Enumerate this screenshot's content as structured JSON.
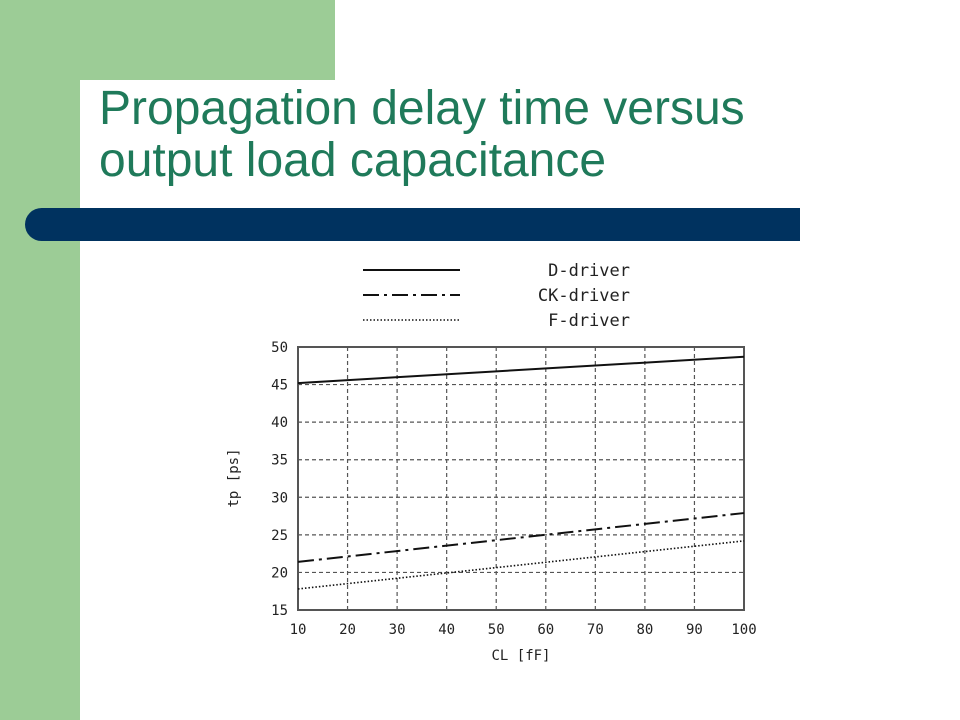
{
  "slide": {
    "title_line1": "Propagation delay time versus",
    "title_line2": "output load capacitance"
  },
  "colors": {
    "green": "#9ccc96",
    "navy": "#00325f",
    "title": "#1f7a5a"
  },
  "chart_data": {
    "type": "line",
    "title": "",
    "xlabel": "CL [fF]",
    "ylabel": "tp [ps]",
    "xlim": [
      10,
      100
    ],
    "ylim": [
      15,
      50
    ],
    "xticks": [
      10,
      20,
      30,
      40,
      50,
      60,
      70,
      80,
      90,
      100
    ],
    "yticks": [
      15,
      20,
      25,
      30,
      35,
      40,
      45,
      50
    ],
    "grid": true,
    "legend_position": "top",
    "series": [
      {
        "name": "D-driver",
        "style": "solid",
        "x": [
          10,
          100
        ],
        "y": [
          45.2,
          48.7
        ]
      },
      {
        "name": "CK-driver",
        "style": "dashdot",
        "x": [
          10,
          100
        ],
        "y": [
          21.4,
          27.9
        ]
      },
      {
        "name": "F-driver",
        "style": "dotted",
        "x": [
          10,
          100
        ],
        "y": [
          17.8,
          24.2
        ]
      }
    ]
  }
}
